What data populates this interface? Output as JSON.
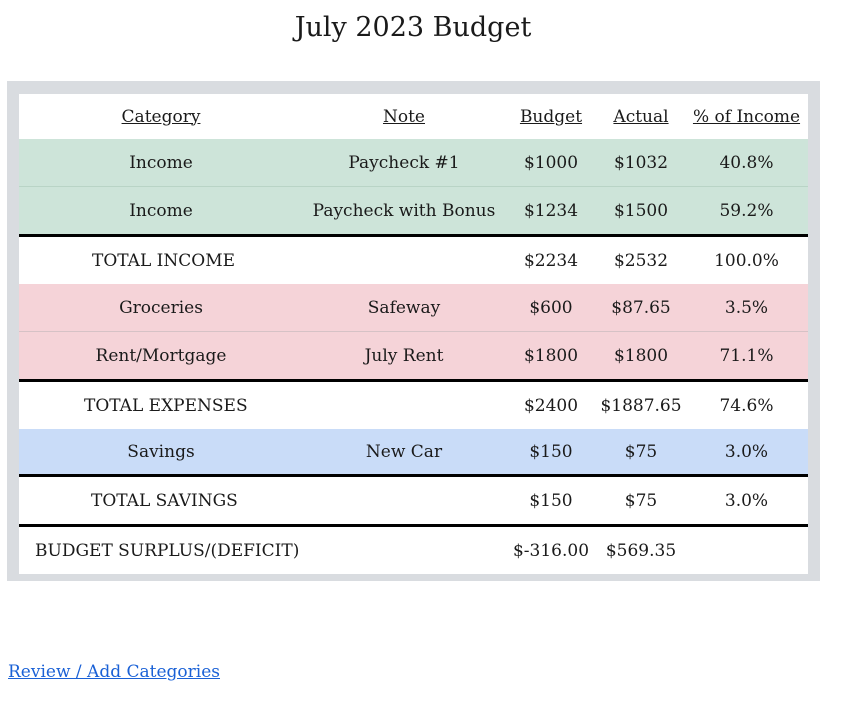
{
  "page": {
    "title": "July 2023 Budget"
  },
  "table": {
    "headers": [
      "Category",
      "Note",
      "Budget",
      "Actual",
      "% of Income"
    ],
    "income_rows": [
      {
        "category": "Income",
        "note": "Paycheck #1",
        "budget": "$1000",
        "actual": "$1032",
        "pct": "40.8%"
      },
      {
        "category": "Income",
        "note": "Paycheck with Bonus",
        "budget": "$1234",
        "actual": "$1500",
        "pct": "59.2%"
      }
    ],
    "total_income": {
      "label": "TOTAL INCOME",
      "budget": "$2234",
      "actual": "$2532",
      "pct": "100.0%"
    },
    "expense_rows": [
      {
        "category": "Groceries",
        "note": "Safeway",
        "budget": "$600",
        "actual": "$87.65",
        "pct": "3.5%"
      },
      {
        "category": "Rent/Mortgage",
        "note": "July Rent",
        "budget": "$1800",
        "actual": "$1800",
        "pct": "71.1%"
      }
    ],
    "total_expenses": {
      "label": "TOTAL EXPENSES",
      "budget": "$2400",
      "actual": "$1887.65",
      "pct": "74.6%"
    },
    "savings_rows": [
      {
        "category": "Savings",
        "note": "New Car",
        "budget": "$150",
        "actual": "$75",
        "pct": "3.0%"
      }
    ],
    "total_savings": {
      "label": "TOTAL SAVINGS",
      "budget": "$150",
      "actual": "$75",
      "pct": "3.0%"
    },
    "surplus": {
      "label": "BUDGET SURPLUS/(DEFICIT)",
      "budget": "$-316.00",
      "actual": "$569.35"
    }
  },
  "footer": {
    "review_link": "Review / Add Categories"
  },
  "colors": {
    "income_row": "#cde4d9",
    "expense_row": "#f5d3d8",
    "savings_row": "#c9dcf8",
    "link": "#1a61d6"
  }
}
